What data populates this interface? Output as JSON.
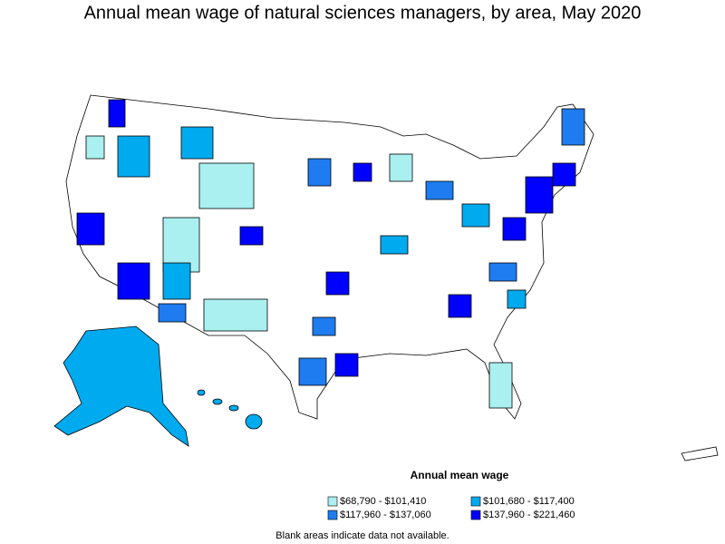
{
  "title": "Annual mean wage of natural sciences managers, by area, May 2020",
  "legend": {
    "title": "Annual mean wage",
    "items": [
      {
        "label": "$68,790 - $101,410",
        "color": "#aaf0f0"
      },
      {
        "label": "$101,680 - $117,400",
        "color": "#00aaee"
      },
      {
        "label": "$117,960 - $137,060",
        "color": "#1e7cf0"
      },
      {
        "label": "$137,960 - $221,460",
        "color": "#0000ff"
      }
    ]
  },
  "note": "Blank areas indicate data not available."
}
